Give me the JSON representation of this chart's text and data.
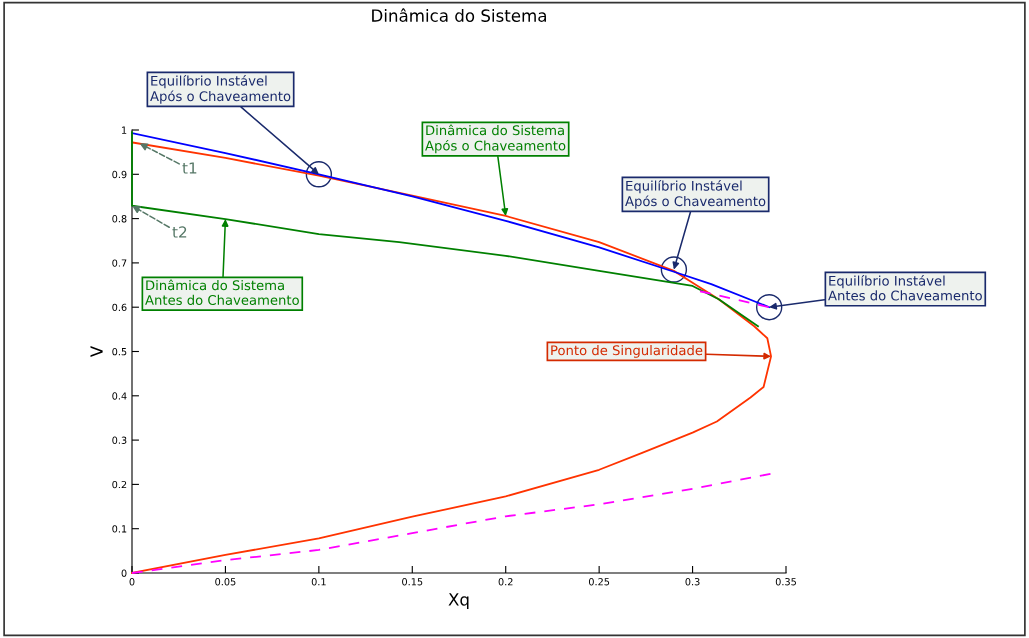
{
  "chart_data": {
    "type": "line",
    "title": "Dinâmica do Sistema",
    "xlabel": "Xq",
    "ylabel": "V",
    "xlim": [
      0,
      0.35
    ],
    "ylim": [
      0,
      1
    ],
    "xticks": [
      0,
      0.05,
      0.1,
      0.15,
      0.2,
      0.25,
      0.3,
      0.35
    ],
    "yticks": [
      0,
      0.1,
      0.2,
      0.3,
      0.4,
      0.5,
      0.6,
      0.7,
      0.8,
      0.9,
      1
    ],
    "grid": false,
    "legend": false,
    "series": [
      {
        "color": "#ff3300",
        "line_style": "solid",
        "x": [
          0,
          0.05,
          0.1,
          0.15,
          0.2,
          0.25,
          0.273,
          0.3,
          0.313,
          0.331,
          0.338,
          0.342,
          0.34,
          0.333,
          0.314,
          0.3,
          0.29,
          0.25,
          0.2,
          0.15,
          0.1,
          0.05,
          0
        ],
        "values": [
          0,
          0.041,
          0.078,
          0.127,
          0.173,
          0.233,
          0.271,
          0.317,
          0.342,
          0.396,
          0.42,
          0.489,
          0.53,
          0.557,
          0.618,
          0.655,
          0.682,
          0.747,
          0.806,
          0.852,
          0.897,
          0.937,
          0.972
        ]
      },
      {
        "color": "#0000ff",
        "line_style": "solid",
        "x": [
          0,
          0.05,
          0.1,
          0.15,
          0.2,
          0.25,
          0.29,
          0.31,
          0.341
        ],
        "values": [
          0.993,
          0.948,
          0.9,
          0.85,
          0.795,
          0.735,
          0.68,
          0.652,
          0.6
        ]
      },
      {
        "color": "#008000",
        "line_style": "solid",
        "x": [
          0,
          0,
          0.05,
          0.1,
          0.143,
          0.2,
          0.25,
          0.29,
          0.3,
          0.314,
          0.335
        ],
        "values": [
          0.995,
          0.829,
          0.799,
          0.765,
          0.747,
          0.716,
          0.682,
          0.655,
          0.648,
          0.618,
          0.557
        ]
      },
      {
        "color": "#ff00ff",
        "line_style": "dashed",
        "x": [
          0,
          0.05,
          0.1,
          0.15,
          0.2,
          0.25,
          0.3,
          0.342
        ],
        "values": [
          0,
          0.029,
          0.052,
          0.09,
          0.128,
          0.155,
          0.19,
          0.224
        ]
      },
      {
        "color": "#ff00ff",
        "line_style": "dashed",
        "x": [
          0.304,
          0.342
        ],
        "values": [
          0.636,
          0.599
        ]
      }
    ],
    "annotations": [
      {
        "text": "Equilíbrio Instável\nApós o Chaveamento",
        "x": 0.1,
        "y": 0.9
      },
      {
        "text": "Dinâmica do Sistema\nApós o Chaveamento",
        "x": 0.2,
        "y": 0.806
      },
      {
        "text": "Equilíbrio Instável\nApós o Chaveamento",
        "x": 0.29,
        "y": 0.685
      },
      {
        "text": "Equilíbrio Instável\nAntes do Chaveamento",
        "x": 0.341,
        "y": 0.6
      },
      {
        "text": "Dinâmica do Sistema\nAntes do Chaveamento",
        "x": 0.05,
        "y": 0.799
      },
      {
        "text": "Ponto de Singularidade",
        "x": 0.342,
        "y": 0.489
      },
      {
        "text": "t1",
        "x": 0.004,
        "y": 0.97
      },
      {
        "text": "t2",
        "x": 0,
        "y": 0.829
      }
    ]
  }
}
